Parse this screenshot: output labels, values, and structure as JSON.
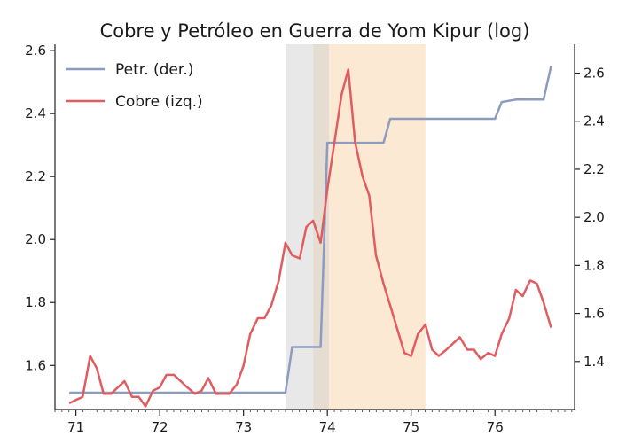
{
  "chart_data": {
    "type": "line",
    "title": "Cobre y Petróleo en Guerra de Yom Kipur (log)",
    "xlabel": "",
    "ylabel_left": "",
    "ylabel_right": "",
    "x_ticks": [
      71,
      72,
      73,
      74,
      75,
      76
    ],
    "x_range": [
      70.75,
      76.95
    ],
    "y_left_range": [
      1.46,
      2.62
    ],
    "y_left_ticks": [
      "1.6",
      "1.8",
      "2.0",
      "2.2",
      "2.4",
      "2.6"
    ],
    "y_right_range": [
      1.2,
      2.72
    ],
    "y_right_ticks": [
      "1.4",
      "1.6",
      "1.8",
      "2.0",
      "2.2",
      "2.4",
      "2.6"
    ],
    "grid": false,
    "legend": "top-left",
    "shaded_regions": [
      {
        "x_start": 73.5,
        "x_end": 73.83,
        "color": "#e8e8e8"
      },
      {
        "x_start": 73.83,
        "x_end": 74.02,
        "color": "#e6ddd2"
      },
      {
        "x_start": 74.02,
        "x_end": 75.17,
        "color": "#fbe9d4"
      }
    ],
    "series": [
      {
        "name": "Petr. (der.)",
        "axis": "right",
        "color": "#8c9bbe",
        "x": [
          70.92,
          73.5,
          73.58,
          73.92,
          74.0,
          74.67,
          74.75,
          76.0,
          76.08,
          76.25,
          76.58,
          76.67
        ],
        "y": [
          1.27,
          1.27,
          1.46,
          1.46,
          2.31,
          2.31,
          2.41,
          2.41,
          2.48,
          2.49,
          2.49,
          2.63
        ]
      },
      {
        "name": "Cobre (izq.)",
        "axis": "left",
        "color": "#e05c60",
        "x": [
          70.92,
          71.0,
          71.08,
          71.17,
          71.25,
          71.33,
          71.42,
          71.5,
          71.58,
          71.67,
          71.75,
          71.83,
          71.92,
          72.0,
          72.08,
          72.17,
          72.25,
          72.33,
          72.42,
          72.5,
          72.58,
          72.67,
          72.75,
          72.83,
          72.92,
          73.0,
          73.08,
          73.17,
          73.25,
          73.33,
          73.42,
          73.5,
          73.58,
          73.67,
          73.75,
          73.83,
          73.92,
          74.0,
          74.08,
          74.17,
          74.25,
          74.33,
          74.42,
          74.5,
          74.58,
          74.67,
          74.75,
          74.83,
          74.92,
          75.0,
          75.08,
          75.17,
          75.25,
          75.33,
          75.42,
          75.5,
          75.58,
          75.67,
          75.75,
          75.83,
          75.92,
          76.0,
          76.08,
          76.17,
          76.25,
          76.33,
          76.42,
          76.5,
          76.58,
          76.67
        ],
        "y": [
          1.48,
          1.49,
          1.5,
          1.63,
          1.59,
          1.51,
          1.51,
          1.53,
          1.55,
          1.5,
          1.5,
          1.47,
          1.52,
          1.53,
          1.57,
          1.57,
          1.55,
          1.53,
          1.51,
          1.52,
          1.56,
          1.51,
          1.51,
          1.51,
          1.54,
          1.6,
          1.7,
          1.75,
          1.75,
          1.79,
          1.87,
          1.99,
          1.95,
          1.94,
          2.04,
          2.06,
          1.99,
          2.16,
          2.3,
          2.46,
          2.54,
          2.31,
          2.2,
          2.14,
          1.95,
          1.86,
          1.79,
          1.72,
          1.64,
          1.63,
          1.7,
          1.73,
          1.65,
          1.63,
          1.65,
          1.67,
          1.69,
          1.65,
          1.65,
          1.62,
          1.64,
          1.63,
          1.7,
          1.75,
          1.84,
          1.82,
          1.87,
          1.86,
          1.8,
          1.72
        ]
      }
    ]
  }
}
